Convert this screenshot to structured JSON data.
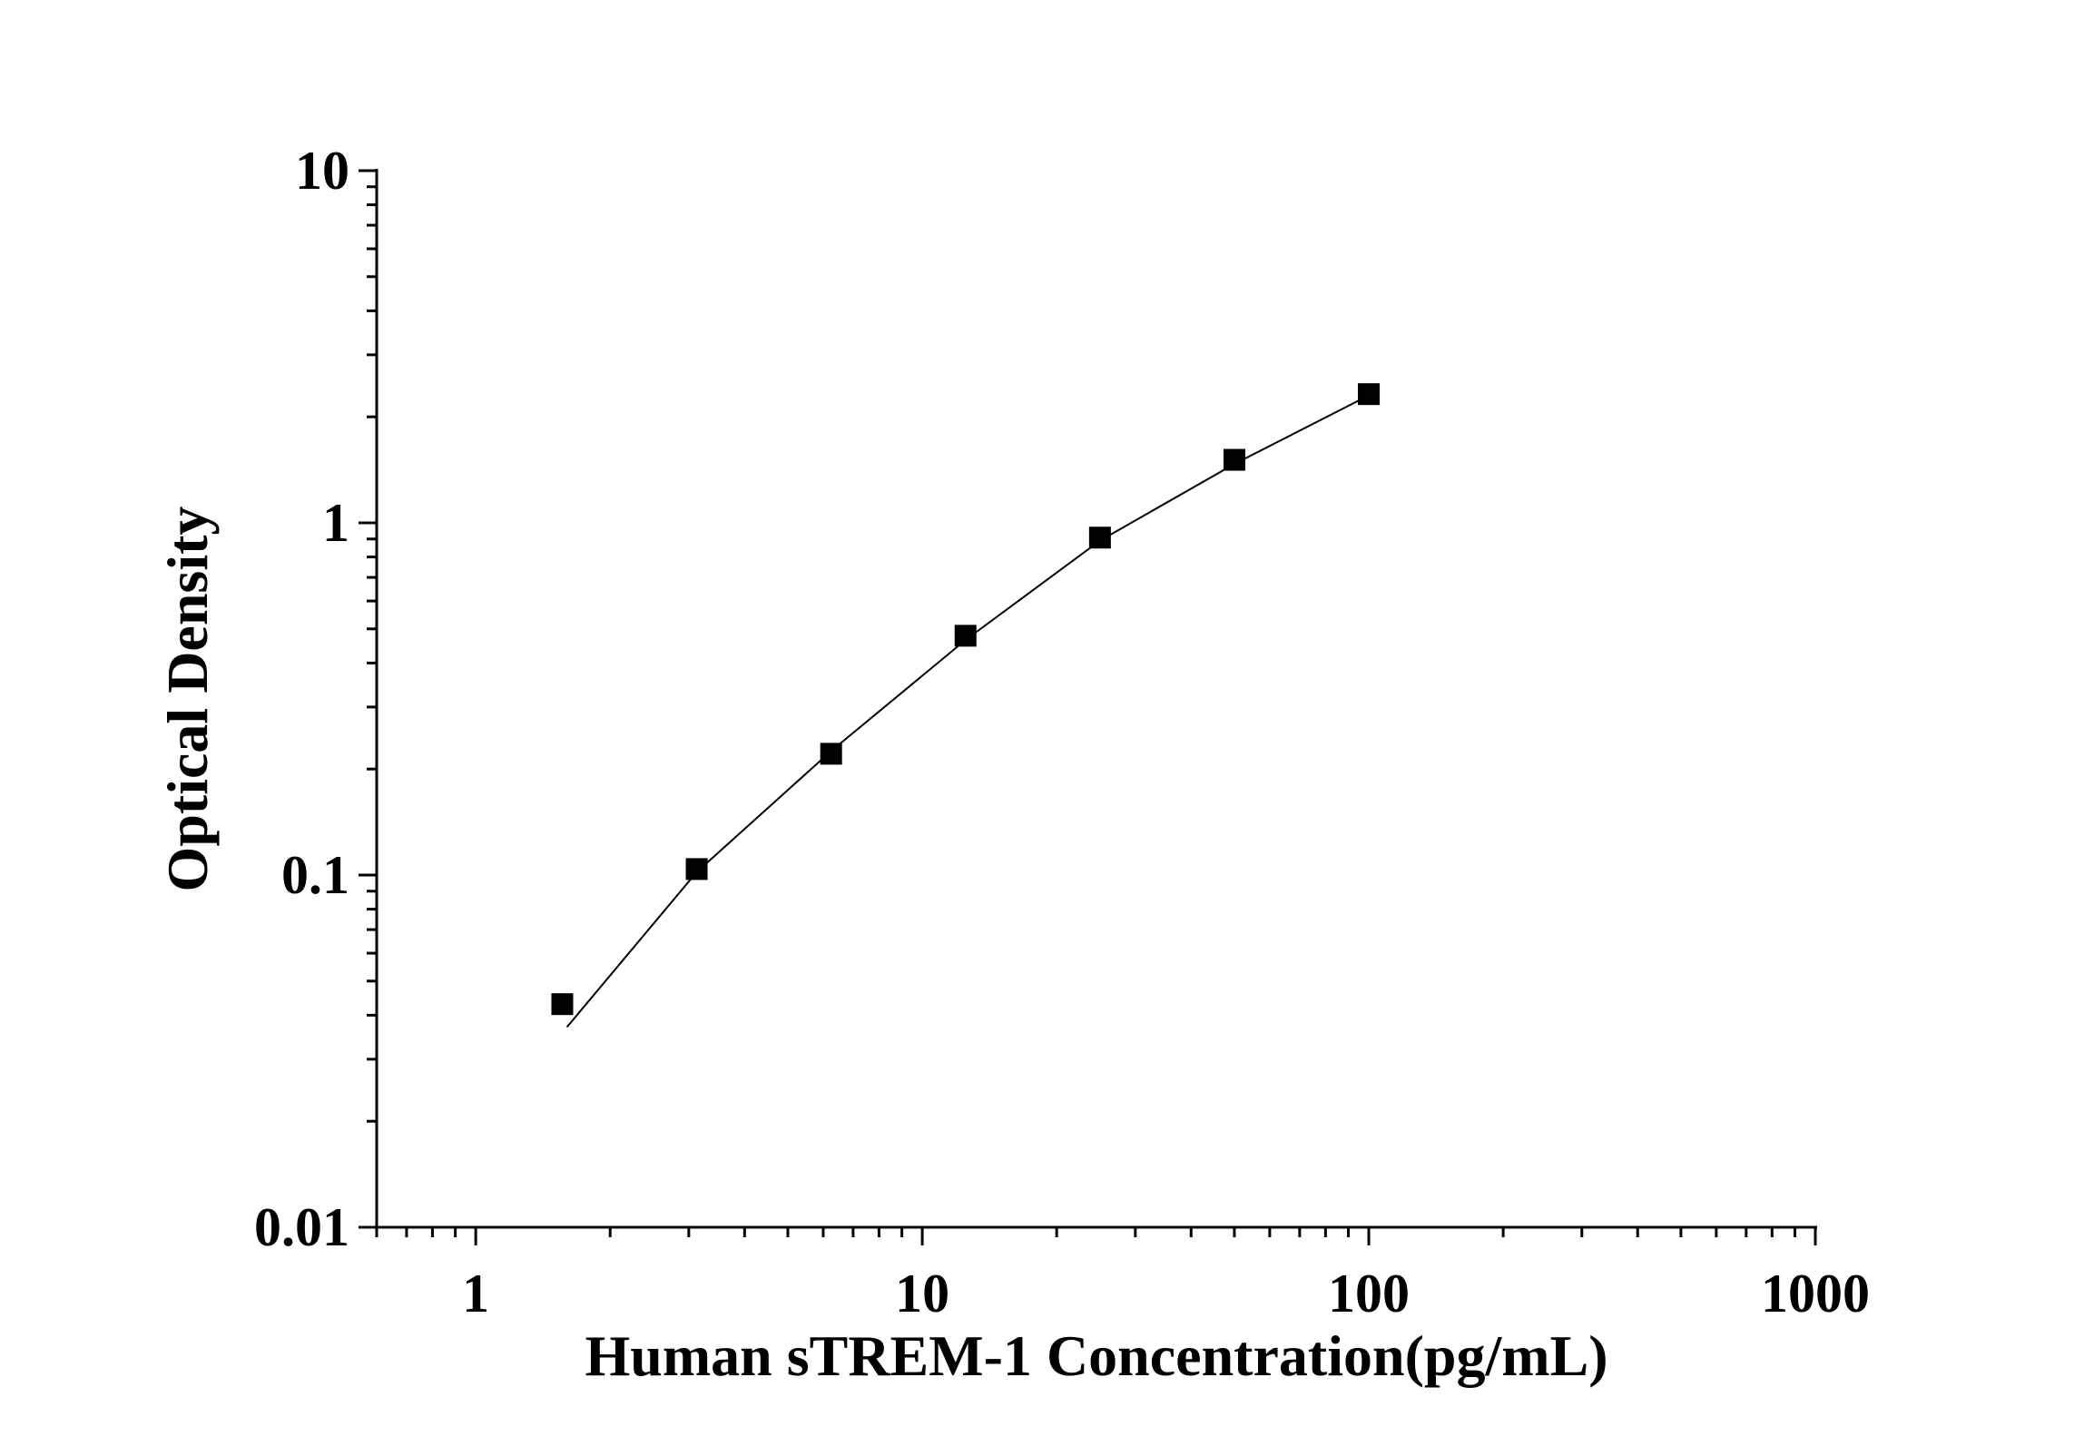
{
  "chart_data": {
    "type": "scatter",
    "title": "",
    "xlabel": "Human sTREM-1 Concentration(pg/mL)",
    "ylabel": "Optical Density",
    "x_scale": "log",
    "y_scale": "log",
    "xlim": [
      0.6,
      1000
    ],
    "ylim": [
      0.01,
      10
    ],
    "x_ticks": [
      "1",
      "10",
      "100",
      "1000"
    ],
    "y_ticks": [
      "0.01",
      "0.1",
      "1",
      "10"
    ],
    "grid": false,
    "marker": "square",
    "color": "#000000",
    "points": {
      "x": [
        1.5625,
        3.125,
        6.25,
        12.5,
        25,
        50,
        100
      ],
      "y": [
        0.043,
        0.104,
        0.221,
        0.478,
        0.908,
        1.51,
        2.32
      ]
    },
    "fit_curve": {
      "x": [
        1.6,
        3.125,
        6.25,
        12.5,
        25,
        50,
        100
      ],
      "y": [
        0.037,
        0.102,
        0.225,
        0.465,
        0.89,
        1.47,
        2.3
      ]
    }
  }
}
